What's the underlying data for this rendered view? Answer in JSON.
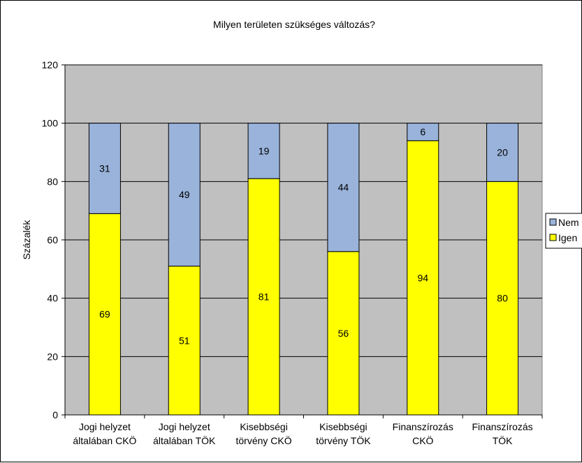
{
  "chart_data": {
    "type": "stacked-bar",
    "title": "Milyen területen szükséges változás?",
    "ylabel": "Százalék",
    "ylim": [
      0,
      120
    ],
    "yticks": [
      0,
      20,
      40,
      60,
      80,
      100,
      120
    ],
    "grid": true,
    "legend_position": "right",
    "categories": [
      [
        "Jogi helyzet",
        "általában CKÖ"
      ],
      [
        "Jogi helyzet",
        "általában TÖK"
      ],
      [
        "Kisebbségi",
        "törvény CKÖ"
      ],
      [
        "Kisebbségi",
        "törvény TÖK"
      ],
      [
        "Finanszírozás",
        "CKÖ"
      ],
      [
        "Finanszírozás",
        "TÖK"
      ]
    ],
    "series": [
      {
        "name": "Igen",
        "color": "#ffff00",
        "values": [
          69,
          51,
          81,
          56,
          94,
          80
        ]
      },
      {
        "name": "Nem",
        "color": "#99b3db",
        "values": [
          31,
          49,
          19,
          44,
          6,
          20
        ]
      }
    ],
    "legend_order": [
      "Nem",
      "Igen"
    ],
    "plot_background": "#c0c0c0"
  }
}
